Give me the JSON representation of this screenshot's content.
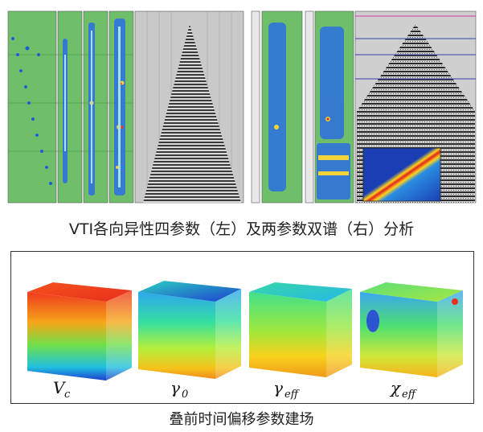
{
  "top_caption": "VTI各向异性四参数（左）及两参数双谱（右）分析",
  "bottom_caption": "叠前时间偏移参数建场",
  "cubes": [
    {
      "symbol": "V",
      "sub": "c"
    },
    {
      "symbol": "γ",
      "sub": "0"
    },
    {
      "symbol": "γ",
      "sub": "eff"
    },
    {
      "symbol": "χ",
      "sub": "eff"
    }
  ],
  "colors": {
    "panel_green": "#6fbf6a",
    "seismic_gray": "#8a8a8a",
    "spectrum_blue": "#1e4fc8",
    "frame": "#333333"
  }
}
